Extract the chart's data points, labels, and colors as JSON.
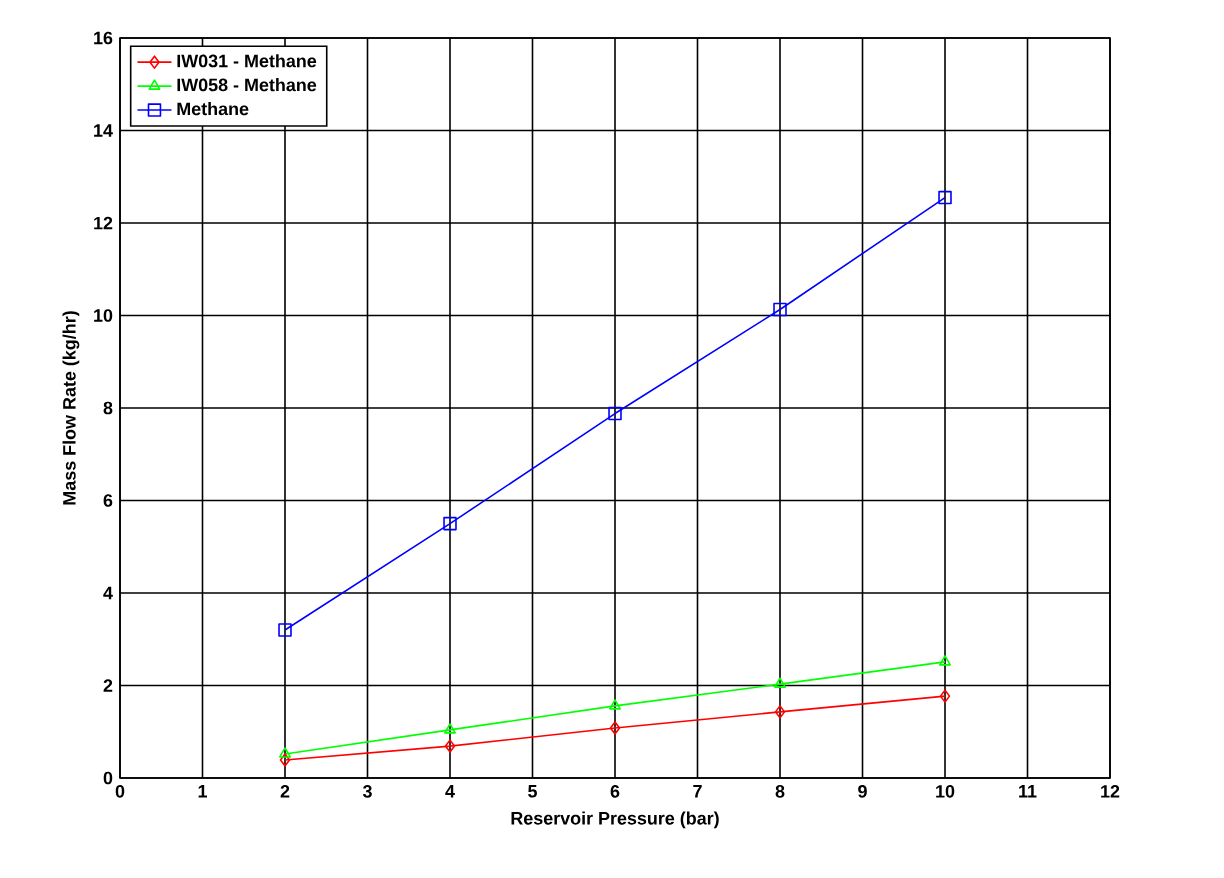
{
  "chart_data": {
    "type": "line",
    "xlabel": "Reservoir Pressure (bar)",
    "ylabel": "Mass Flow Rate (kg/hr)",
    "x": [
      2,
      4,
      6,
      8,
      10
    ],
    "series": [
      {
        "name": "IW031 - Methane",
        "color": "#ff0000",
        "marker": "diamond",
        "values": [
          0.39,
          0.69,
          1.08,
          1.43,
          1.77
        ]
      },
      {
        "name": "IW058 - Methane",
        "color": "#00ff00",
        "marker": "triangle",
        "values": [
          0.52,
          1.04,
          1.56,
          2.03,
          2.51
        ]
      },
      {
        "name": "Methane",
        "color": "#0000ff",
        "marker": "square",
        "values": [
          3.2,
          5.5,
          7.88,
          10.13,
          12.55
        ]
      }
    ],
    "xlim": [
      0,
      12
    ],
    "ylim": [
      0,
      16
    ],
    "xticks": [
      0,
      1,
      2,
      3,
      4,
      5,
      6,
      7,
      8,
      9,
      10,
      11,
      12
    ],
    "yticks": [
      0,
      2,
      4,
      6,
      8,
      10,
      12,
      14,
      16
    ],
    "grid": true,
    "legend": "top left"
  }
}
